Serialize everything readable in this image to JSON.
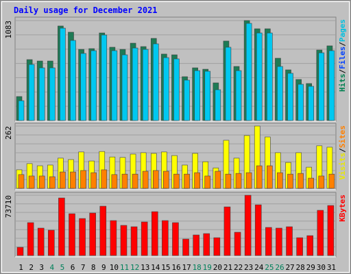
{
  "chart_data": {
    "type": "bar",
    "title": "Daily usage for December 2021",
    "categories": [
      "1",
      "2",
      "3",
      "4",
      "5",
      "6",
      "7",
      "8",
      "9",
      "10",
      "11",
      "12",
      "13",
      "14",
      "15",
      "16",
      "17",
      "18",
      "19",
      "20",
      "21",
      "22",
      "23",
      "24",
      "25",
      "26",
      "27",
      "28",
      "29",
      "30",
      "31"
    ],
    "category_colors": [
      "#000000",
      "#000000",
      "#000000",
      "#00805a",
      "#00805a",
      "#000000",
      "#000000",
      "#000000",
      "#000000",
      "#000000",
      "#00805a",
      "#00805a",
      "#000000",
      "#000000",
      "#000000",
      "#000000",
      "#000000",
      "#00805a",
      "#00805a",
      "#000000",
      "#000000",
      "#000000",
      "#000000",
      "#000000",
      "#00805a",
      "#00805a",
      "#000000",
      "#000000",
      "#000000",
      "#000000",
      "#000000"
    ],
    "panels": [
      {
        "ylim": [
          0,
          1083
        ],
        "yticks": [
          1083
        ],
        "legend": [
          {
            "text": "Pages",
            "color": "#00c0e0"
          },
          {
            "text": "/",
            "color": "#000000"
          },
          {
            "text": "Files",
            "color": "#0040ff"
          },
          {
            "text": "/",
            "color": "#000000"
          },
          {
            "text": "Hits",
            "color": "#008050"
          }
        ],
        "series": [
          {
            "color": "#1e7b55",
            "values": [
              260,
              660,
              645,
              645,
              1024,
              957,
              771,
              779,
              949,
              794,
              771,
              838,
              801,
              890,
              720,
              712,
              475,
              571,
              556,
              408,
              861,
              586,
              1083,
              994,
              994,
              675,
              549,
              445,
              401,
              764,
              809
            ]
          },
          {
            "color": "#00c8f0",
            "values": [
              215,
              608,
              571,
              571,
              1001,
              868,
              727,
              757,
              927,
              757,
              712,
              786,
              771,
              831,
              682,
              668,
              438,
              541,
              534,
              334,
              794,
              541,
              1053,
              949,
              949,
              586,
              512,
              393,
              371,
              734,
              757
            ]
          }
        ]
      },
      {
        "ylim": [
          0,
          262
        ],
        "yticks": [
          262
        ],
        "legend": [
          {
            "text": "Sites",
            "color": "#ff8000"
          },
          {
            "text": "/",
            "color": "#000000"
          },
          {
            "text": "Visits",
            "color": "#e8e800"
          }
        ],
        "series": [
          {
            "color": "#ffff00",
            "values": [
              78,
              104,
              95,
              98,
              127,
              121,
              153,
              115,
              155,
              132,
              130,
              144,
              150,
              147,
              153,
              138,
              98,
              147,
              112,
              86,
              202,
              127,
              222,
              262,
              216,
              150,
              109,
              150,
              89,
              179,
              173
            ]
          },
          {
            "color": "#ff8000",
            "values": [
              58,
              52,
              52,
              49,
              69,
              69,
              75,
              66,
              78,
              58,
              60,
              60,
              72,
              75,
              72,
              60,
              60,
              66,
              52,
              72,
              60,
              63,
              66,
              95,
              95,
              66,
              60,
              63,
              43,
              52,
              60
            ]
          }
        ]
      },
      {
        "ylim": [
          0,
          73710
        ],
        "yticks": [
          73710
        ],
        "legend": [
          {
            "text": "KBytes",
            "color": "#ff0000"
          }
        ],
        "series": [
          {
            "color": "#ff0000",
            "values": [
              10051,
              40205,
              33505,
              30991,
              70359,
              51094,
              45233,
              51931,
              60308,
              42718,
              36855,
              35180,
              41043,
              53606,
              42718,
              40205,
              20102,
              25128,
              26803,
              21778,
              59470,
              28478,
              73710,
              61983,
              34342,
              33505,
              35180,
              21778,
              24290,
              55282,
              61145
            ]
          }
        ]
      }
    ]
  }
}
